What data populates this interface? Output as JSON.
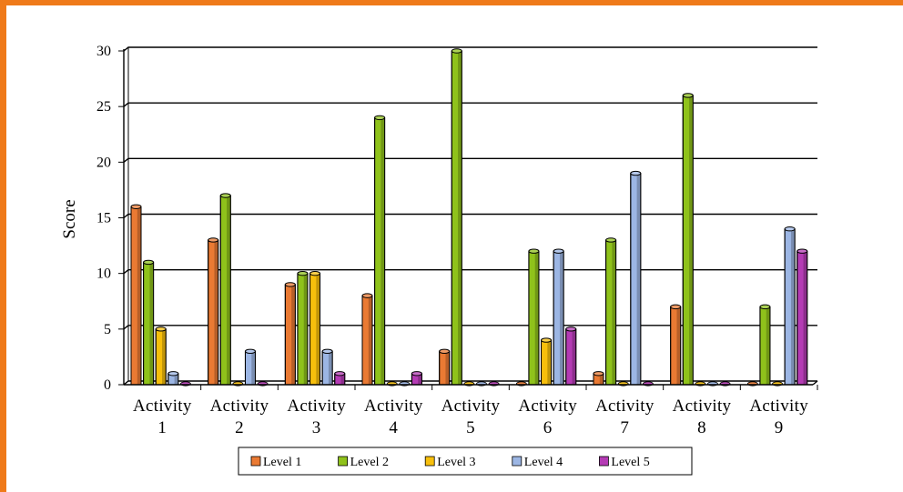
{
  "chart_data": {
    "type": "bar",
    "ylabel": "Score",
    "xlabel": "",
    "ylim": [
      0,
      30
    ],
    "yticks": [
      "0",
      "5",
      "10",
      "15",
      "20",
      "25",
      "30"
    ],
    "categories": [
      [
        "Activity",
        "1"
      ],
      [
        "Activity",
        "2"
      ],
      [
        "Activity",
        "3"
      ],
      [
        "Activity",
        "4"
      ],
      [
        "Activity",
        "5"
      ],
      [
        "Activity",
        "6"
      ],
      [
        "Activity",
        "7"
      ],
      [
        "Activity",
        "8"
      ],
      [
        "Activity",
        "9"
      ]
    ],
    "series": [
      {
        "name": "Level 1",
        "color": "#ea7a33",
        "values": [
          16,
          13,
          9,
          8,
          3,
          0,
          1,
          7,
          0
        ]
      },
      {
        "name": "Level 2",
        "color": "#8fc21b",
        "values": [
          11,
          17,
          10,
          24,
          30,
          12,
          13,
          26,
          7
        ]
      },
      {
        "name": "Level 3",
        "color": "#f7bf0c",
        "values": [
          5,
          0,
          10,
          0,
          0,
          4,
          0,
          0,
          0
        ]
      },
      {
        "name": "Level 4",
        "color": "#9cb6e4",
        "values": [
          1,
          3,
          3,
          0,
          0,
          12,
          19,
          0,
          14
        ]
      },
      {
        "name": "Level 5",
        "color": "#b43bb4",
        "values": [
          0,
          0,
          1,
          1,
          0,
          5,
          0,
          0,
          12
        ]
      }
    ],
    "grid": true,
    "legend": "bottom"
  }
}
